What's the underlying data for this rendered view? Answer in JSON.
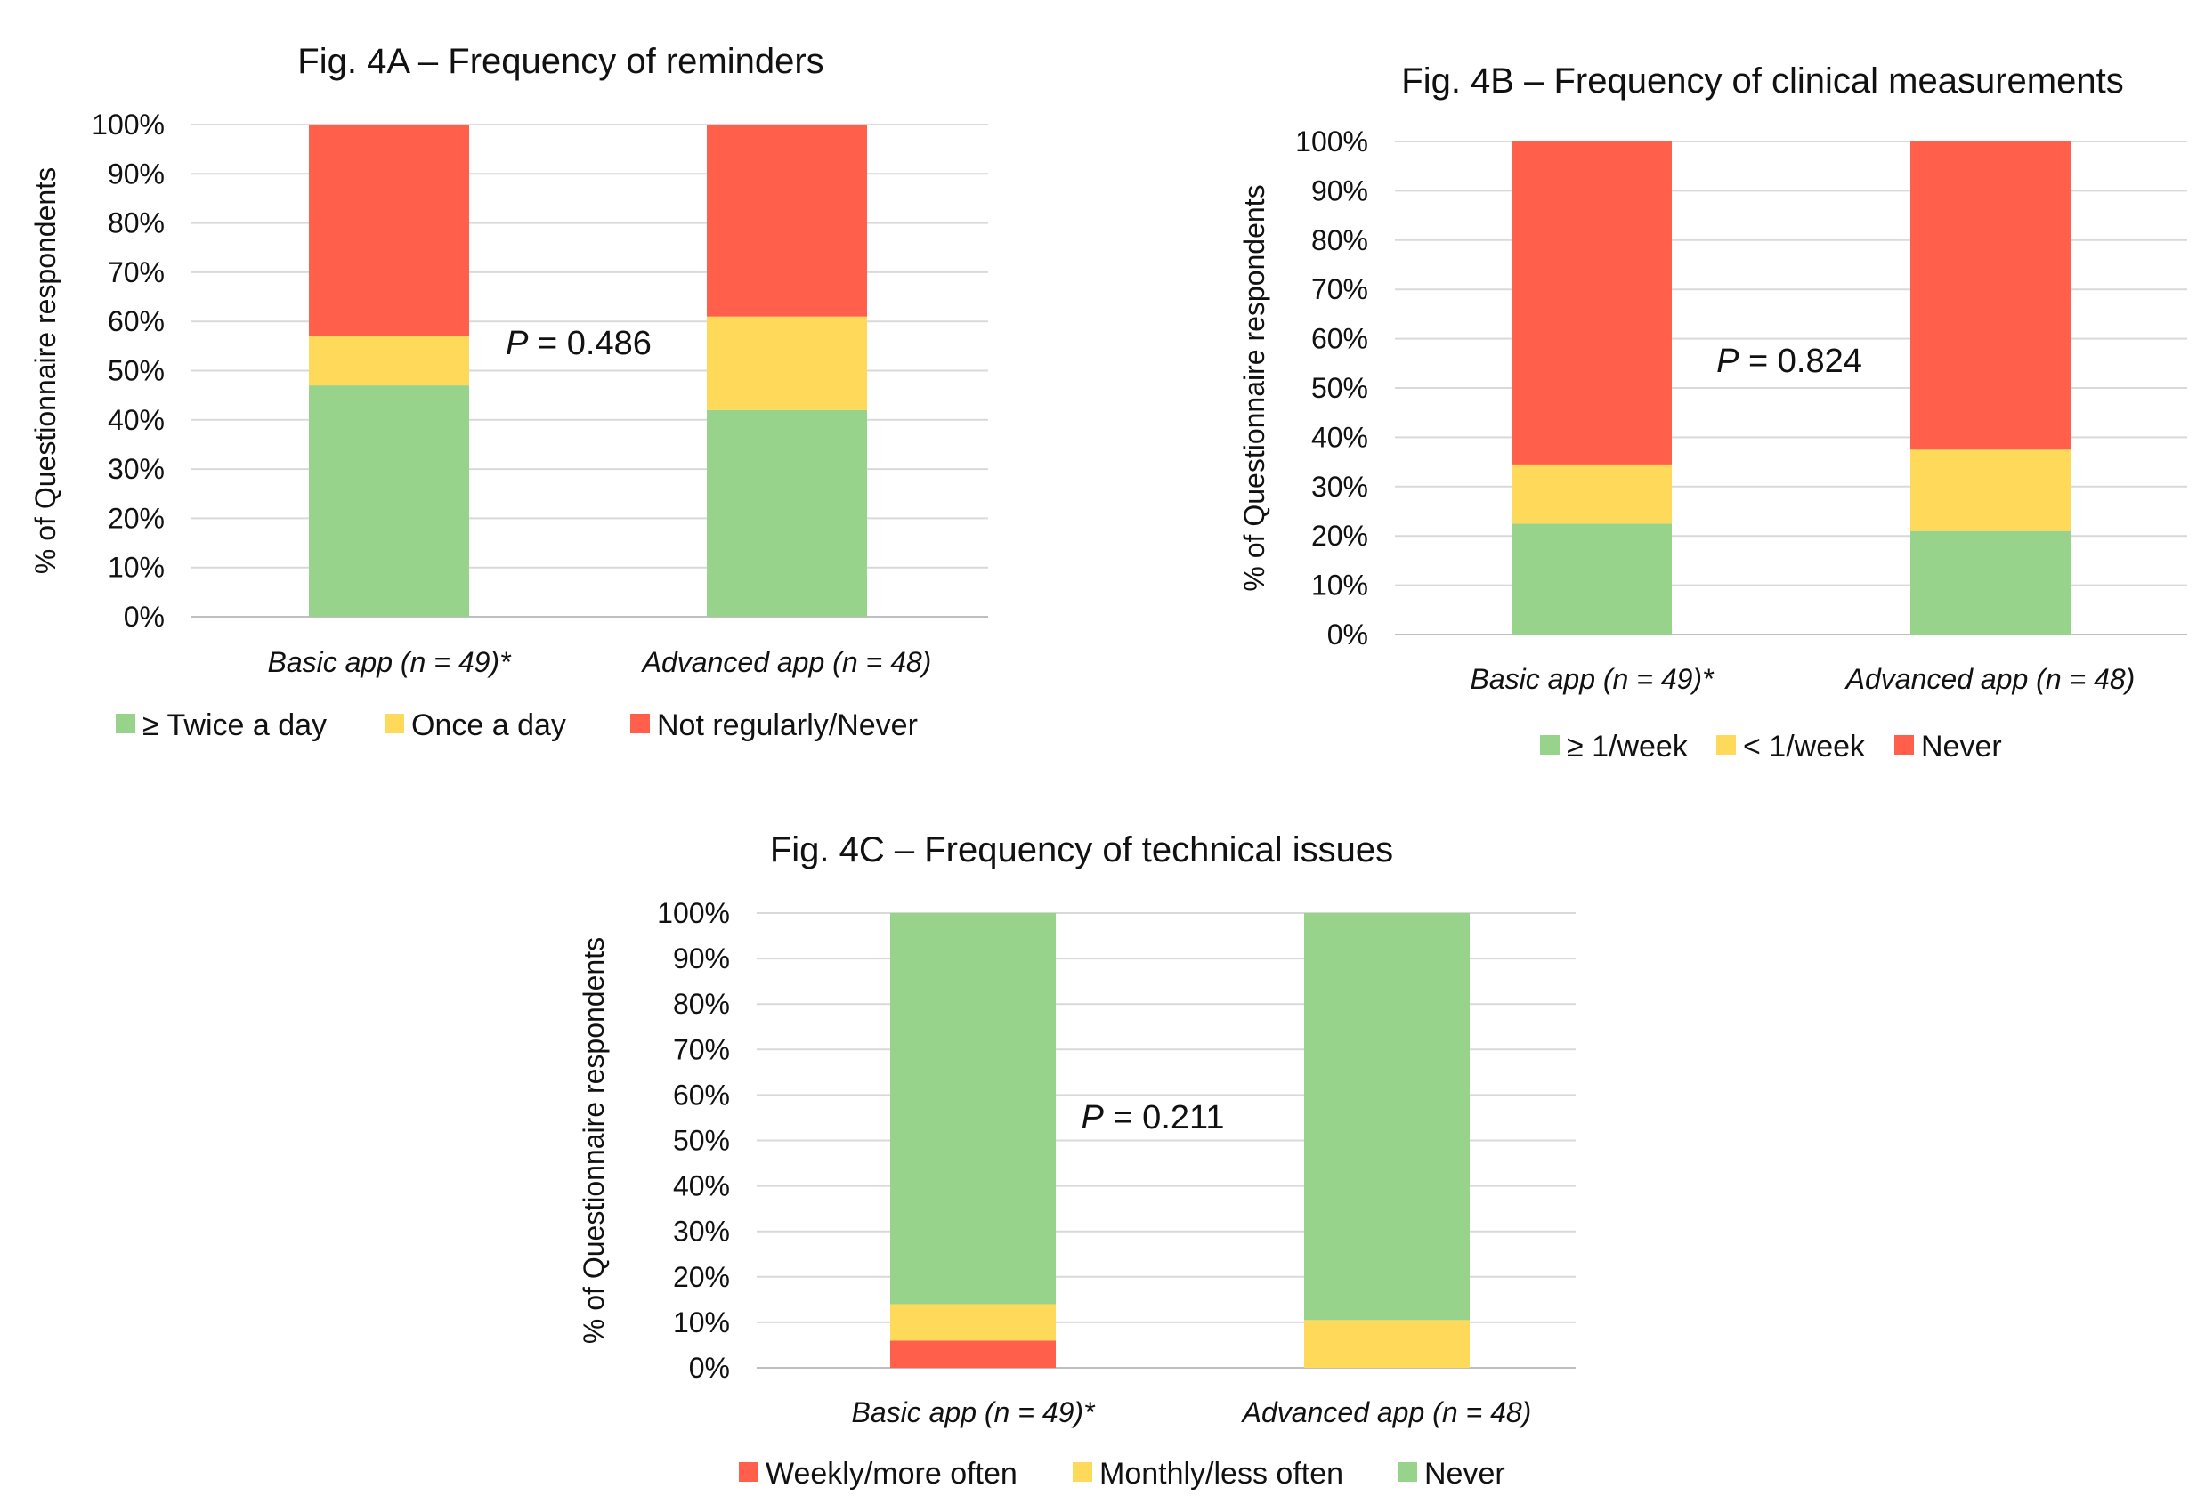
{
  "chart_data": [
    {
      "type": "bar",
      "stacked": true,
      "title": "Fig. 4A – Frequency of reminders",
      "ylabel": "% of  Questionnaire respondents",
      "xlabel": "",
      "ylim": [
        0,
        100
      ],
      "yticks": [
        "0%",
        "10%",
        "20%",
        "30%",
        "40%",
        "50%",
        "60%",
        "70%",
        "80%",
        "90%",
        "100%"
      ],
      "grid": true,
      "categories": [
        "Basic app (n = 49)*",
        "Advanced app (n = 48)"
      ],
      "series": [
        {
          "name": "≥ Twice a day",
          "color": "#97d38b",
          "values": [
            47,
            42
          ]
        },
        {
          "name": "Once a day",
          "color": "#ffd95a",
          "values": [
            10,
            19
          ]
        },
        {
          "name": "Not regularly/Never",
          "color": "#ff5f4b",
          "values": [
            43,
            39
          ]
        }
      ],
      "legend_order": [
        0,
        1,
        2
      ],
      "annotation": {
        "p_label": "P",
        "p_text": " = 0.486"
      },
      "legend_position": "bottom"
    },
    {
      "type": "bar",
      "stacked": true,
      "title": "Fig. 4B – Frequency of clinical measurements",
      "ylabel": "% of  Questionnaire respondents",
      "xlabel": "",
      "ylim": [
        0,
        100
      ],
      "yticks": [
        "0%",
        "10%",
        "20%",
        "30%",
        "40%",
        "50%",
        "60%",
        "70%",
        "80%",
        "90%",
        "100%"
      ],
      "grid": true,
      "categories": [
        "Basic app (n = 49)*",
        "Advanced app (n = 48)"
      ],
      "series": [
        {
          "name": "≥ 1/week",
          "color": "#97d38b",
          "values": [
            22.5,
            21
          ]
        },
        {
          "name": "< 1/week",
          "color": "#ffd95a",
          "values": [
            12,
            16.5
          ]
        },
        {
          "name": "Never",
          "color": "#ff5f4b",
          "values": [
            65.5,
            62.5
          ]
        }
      ],
      "legend_order": [
        0,
        1,
        2
      ],
      "annotation": {
        "p_label": "P",
        "p_text": " = 0.824"
      },
      "legend_position": "bottom"
    },
    {
      "type": "bar",
      "stacked": true,
      "title": "Fig. 4C – Frequency of technical issues",
      "ylabel": "% of  Questionnaire respondents",
      "xlabel": "",
      "ylim": [
        0,
        100
      ],
      "yticks": [
        "0%",
        "10%",
        "20%",
        "30%",
        "40%",
        "50%",
        "60%",
        "70%",
        "80%",
        "90%",
        "100%"
      ],
      "grid": true,
      "categories": [
        "Basic app (n = 49)*",
        "Advanced app (n = 48)"
      ],
      "series": [
        {
          "name": "Weekly/more often",
          "color": "#ff5f4b",
          "values": [
            6,
            0
          ]
        },
        {
          "name": "Monthly/less often",
          "color": "#ffd95a",
          "values": [
            8,
            10.5
          ]
        },
        {
          "name": "Never",
          "color": "#97d38b",
          "values": [
            86,
            89.5
          ]
        }
      ],
      "legend_order": [
        0,
        1,
        2
      ],
      "annotation": {
        "p_label": "P",
        "p_text": " = 0.211"
      },
      "legend_position": "bottom"
    }
  ]
}
